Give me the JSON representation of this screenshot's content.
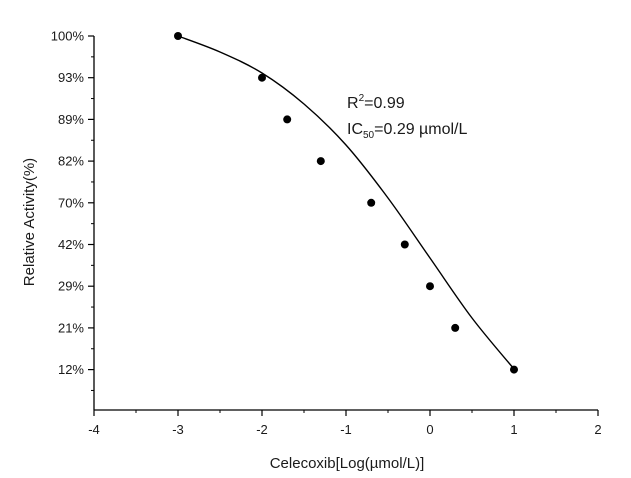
{
  "chart_data": {
    "type": "scatter",
    "xlabel": "Celecoxib[Log(µmol/L)]",
    "ylabel": "Relative Activity(%)",
    "xlim": [
      -4,
      2
    ],
    "x_ticks": [
      "-4",
      "-3",
      "-2",
      "-1",
      "0",
      "1",
      "2"
    ],
    "y_tick_labels": [
      "12%",
      "21%",
      "29%",
      "42%",
      "70%",
      "82%",
      "89%",
      "93%",
      "100%"
    ],
    "y_axis_note": "categorical-style labels on evenly spaced ticks",
    "points": [
      {
        "x": -3.0,
        "y_label": "100%"
      },
      {
        "x": -2.0,
        "y_label": "93%"
      },
      {
        "x": -1.7,
        "y_label": "89%"
      },
      {
        "x": -1.3,
        "y_label": "82%"
      },
      {
        "x": -0.7,
        "y_label": "70%"
      },
      {
        "x": -0.3,
        "y_label": "42%"
      },
      {
        "x": 0.0,
        "y_label": "29%"
      },
      {
        "x": 0.3,
        "y_label": "21%"
      },
      {
        "x": 1.0,
        "y_label": "12%"
      }
    ],
    "fit_curve": "sigmoidal dose-response fit",
    "grid": false,
    "annotations": {
      "r2_base": "R",
      "r2_sup": "2",
      "r2_value": "=0.99",
      "ic_base": "IC",
      "ic_sub": "50",
      "ic_value": "=0.29 µmol/L"
    }
  }
}
